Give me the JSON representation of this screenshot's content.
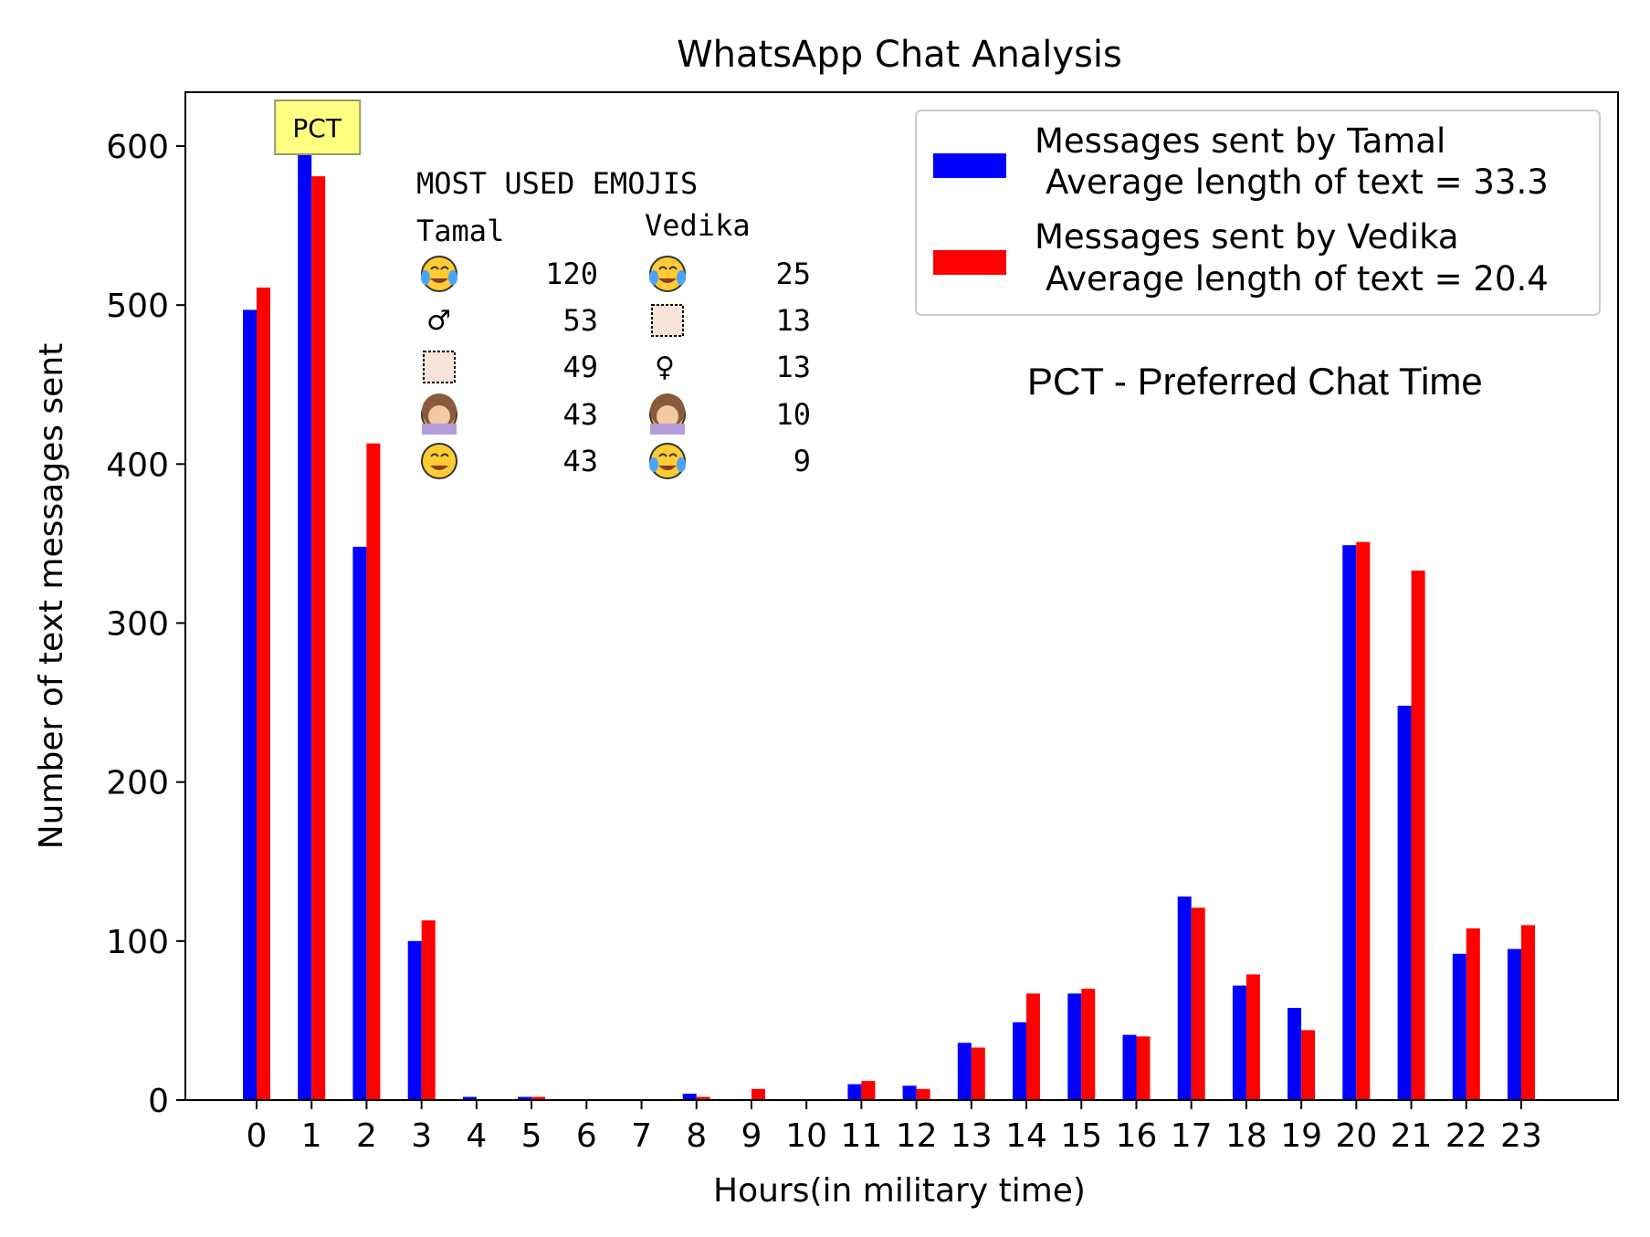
{
  "chart_data": {
    "type": "bar",
    "title": "WhatsApp Chat Analysis",
    "xlabel": "Hours(in military time)",
    "ylabel": "Number of text messages sent",
    "ylim": [
      0,
      635
    ],
    "yticks": [
      0,
      100,
      200,
      300,
      400,
      500,
      600
    ],
    "categories": [
      "0",
      "1",
      "2",
      "3",
      "4",
      "5",
      "6",
      "7",
      "8",
      "9",
      "10",
      "11",
      "12",
      "13",
      "14",
      "15",
      "16",
      "17",
      "18",
      "19",
      "20",
      "21",
      "22",
      "23"
    ],
    "series": [
      {
        "name": "Messages sent by Tamal",
        "name_line2": "Average length of text = 33.3",
        "color": "#0000ff",
        "values": [
          497,
          603,
          348,
          100,
          2,
          2,
          0,
          0,
          4,
          0,
          0,
          10,
          9,
          36,
          49,
          67,
          41,
          128,
          72,
          58,
          349,
          248,
          92,
          95
        ]
      },
      {
        "name": "Messages sent by Vedika",
        "name_line2": "Average length of text = 20.4",
        "color": "#ff0000",
        "values": [
          511,
          581,
          413,
          113,
          0,
          2,
          0,
          0,
          2,
          7,
          0,
          12,
          7,
          33,
          67,
          70,
          40,
          121,
          79,
          44,
          351,
          333,
          108,
          110
        ]
      }
    ],
    "legend_position": "top-right",
    "grid": false,
    "pct_marker": {
      "label": "PCT",
      "category": "1",
      "color": "#ffff80"
    },
    "pct_note": "PCT - Preferred Chat Time",
    "emoji_table": {
      "heading": "MOST USED EMOJIS",
      "columns": [
        {
          "person": "Tamal",
          "rows": [
            {
              "icon": "tears-of-joy-emoji",
              "glyph": "😂",
              "count": "120"
            },
            {
              "icon": "male-sign",
              "glyph": "♂",
              "count": "53"
            },
            {
              "icon": "placeholder-emoji",
              "glyph": "",
              "count": "49"
            },
            {
              "icon": "facepalm-emoji",
              "glyph": "🤦",
              "count": "43"
            },
            {
              "icon": "relieved-face-emoji",
              "glyph": "😌",
              "count": "43"
            }
          ]
        },
        {
          "person": "Vedika",
          "rows": [
            {
              "icon": "loudly-crying-emoji",
              "glyph": "😭",
              "count": "25"
            },
            {
              "icon": "placeholder-emoji",
              "glyph": "",
              "count": "13"
            },
            {
              "icon": "female-sign",
              "glyph": "♀",
              "count": "13"
            },
            {
              "icon": "facepalm-emoji",
              "glyph": "🤦",
              "count": "10"
            },
            {
              "icon": "tears-of-joy-emoji",
              "glyph": "😂",
              "count": "9"
            }
          ]
        }
      ]
    }
  }
}
